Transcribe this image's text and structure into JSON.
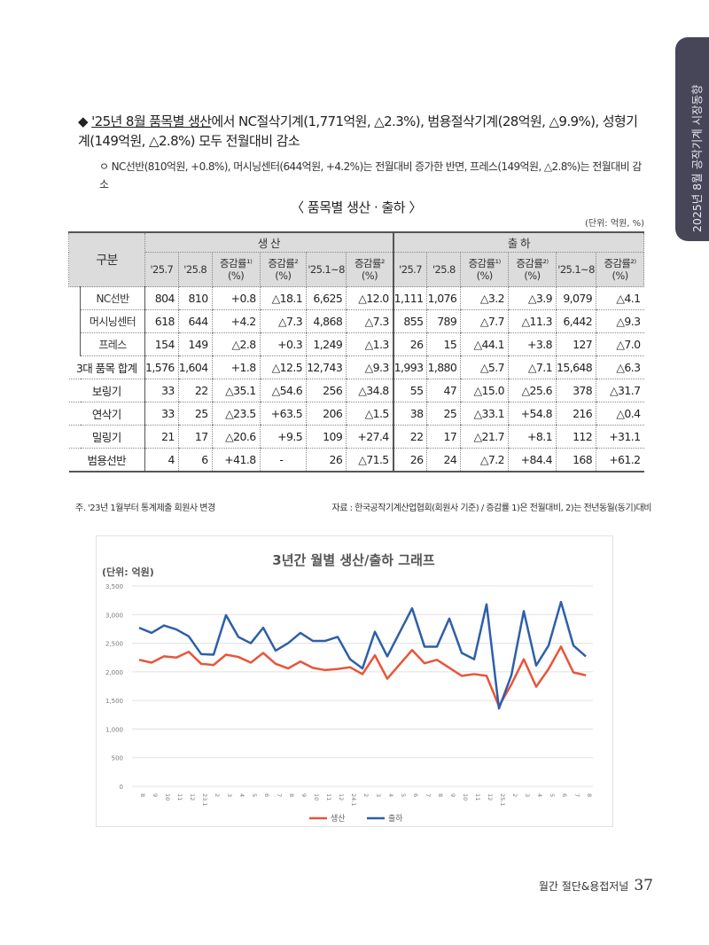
{
  "side_tab": "2025년 8월 공작기계 시장동향",
  "bullet": {
    "marker": "◆",
    "lead": "'25년 8월 품목별 생산",
    "text": "에서 NC절삭기계(1,771억원, △2.3%), 범용절삭기계(28억원, △9.9%), 성형기계(149억원, △2.8%) 모두 전월대비 감소"
  },
  "sub_bullet": "ㅇ NC선반(810억원, +0.8%), 머시닝센터(644억원, +4.2%)는 전월대비 증가한 반면, 프레스(149억원, △2.8%)는 전월대비 감소",
  "table_caption": "〈 품목별 생산 · 출하 〉",
  "unit": "(단위: 억원, %)",
  "table": {
    "corner": "구분",
    "groups": [
      "생 산",
      "출 하"
    ],
    "columns": [
      "'25.7",
      "'25.8",
      "증감률¹⁾ (%)",
      "증감률² (%)",
      "'25.1~8",
      "증감률² (%)",
      "'25.7",
      "'25.8",
      "증감률¹⁾ (%)",
      "증감률²⁾ (%)",
      "'25.1~8",
      "증감률²⁾ (%)"
    ],
    "rows": [
      {
        "name": "NC선반",
        "sub": true,
        "values": [
          "804",
          "810",
          "+0.8",
          "△18.1",
          "6,625",
          "△12.0",
          "1,111",
          "1,076",
          "△3.2",
          "△3.9",
          "9,079",
          "△4.1"
        ]
      },
      {
        "name": "머시닝센터",
        "sub": true,
        "values": [
          "618",
          "644",
          "+4.2",
          "△7.3",
          "4,868",
          "△7.3",
          "855",
          "789",
          "△7.7",
          "△11.3",
          "6,442",
          "△9.3"
        ]
      },
      {
        "name": "프레스",
        "sub": true,
        "values": [
          "154",
          "149",
          "△2.8",
          "+0.3",
          "1,249",
          "△1.3",
          "26",
          "15",
          "△44.1",
          "+3.8",
          "127",
          "△7.0"
        ]
      },
      {
        "name": "3대 품목 합계",
        "sub": false,
        "values": [
          "1,576",
          "1,604",
          "+1.8",
          "△12.5",
          "12,743",
          "△9.3",
          "1,993",
          "1,880",
          "△5.7",
          "△7.1",
          "15,648",
          "△6.3"
        ]
      },
      {
        "name": "보링기",
        "sub": false,
        "values": [
          "33",
          "22",
          "△35.1",
          "△54.6",
          "256",
          "△34.8",
          "55",
          "47",
          "△15.0",
          "△25.6",
          "378",
          "△31.7"
        ]
      },
      {
        "name": "연삭기",
        "sub": false,
        "values": [
          "33",
          "25",
          "△23.5",
          "+63.5",
          "206",
          "△1.5",
          "38",
          "25",
          "△33.1",
          "+54.8",
          "216",
          "△0.4"
        ]
      },
      {
        "name": "밀링기",
        "sub": false,
        "values": [
          "21",
          "17",
          "△20.6",
          "+9.5",
          "109",
          "+27.4",
          "22",
          "17",
          "△21.7",
          "+8.1",
          "112",
          "+31.1"
        ]
      },
      {
        "name": "범용선반",
        "sub": false,
        "values": [
          "4",
          "6",
          "+41.8",
          "-",
          "26",
          "△71.5",
          "26",
          "24",
          "△7.2",
          "+84.4",
          "168",
          "+61.2"
        ]
      }
    ]
  },
  "note_left": "주. '23년 1월부터 통계제출 회원사 변경",
  "note_right": "자료 : 한국공작기계산업협회(회원사 기준) / 증감률 1)은 전월대비, 2)는 전년동월(동기)대비",
  "chart_data": {
    "type": "line",
    "title": "3년간 월별 생산/출하 그래프",
    "unit_label": "(단위: 억원)",
    "ylim": [
      0,
      3500
    ],
    "yticks": [
      "0",
      "500",
      "1,000",
      "1,500",
      "2,000",
      "2,500",
      "3,000",
      "3,500"
    ],
    "grid": true,
    "legend": "bottom",
    "categories": [
      "8",
      "9",
      "10",
      "11",
      "12",
      "23.1",
      "2",
      "3",
      "4",
      "5",
      "6",
      "7",
      "8",
      "9",
      "10",
      "11",
      "12",
      "24.1",
      "2",
      "3",
      "4",
      "5",
      "6",
      "7",
      "8",
      "9",
      "10",
      "11",
      "12",
      "25.1",
      "2",
      "3",
      "4",
      "5",
      "6",
      "7",
      "8"
    ],
    "series": [
      {
        "name": "생산",
        "color": "#e8553a",
        "values": [
          2210,
          2160,
          2270,
          2250,
          2350,
          2140,
          2120,
          2300,
          2260,
          2160,
          2330,
          2140,
          2060,
          2180,
          2070,
          2030,
          2050,
          2080,
          1960,
          2290,
          1880,
          2130,
          2380,
          2150,
          2210,
          2070,
          1930,
          1960,
          1930,
          1400,
          1780,
          2220,
          1740,
          2050,
          2440,
          1990,
          1940
        ]
      },
      {
        "name": "출하",
        "color": "#2e5fa8",
        "values": [
          2770,
          2680,
          2810,
          2740,
          2620,
          2310,
          2300,
          2990,
          2610,
          2500,
          2770,
          2370,
          2500,
          2680,
          2540,
          2540,
          2610,
          2220,
          2060,
          2700,
          2270,
          2690,
          3110,
          2440,
          2440,
          2930,
          2330,
          2220,
          3180,
          1360,
          1940,
          3060,
          2110,
          2460,
          3220,
          2460,
          2270
        ]
      }
    ]
  },
  "footer": {
    "journal": "월간 절단&용접저널",
    "page": "37"
  }
}
